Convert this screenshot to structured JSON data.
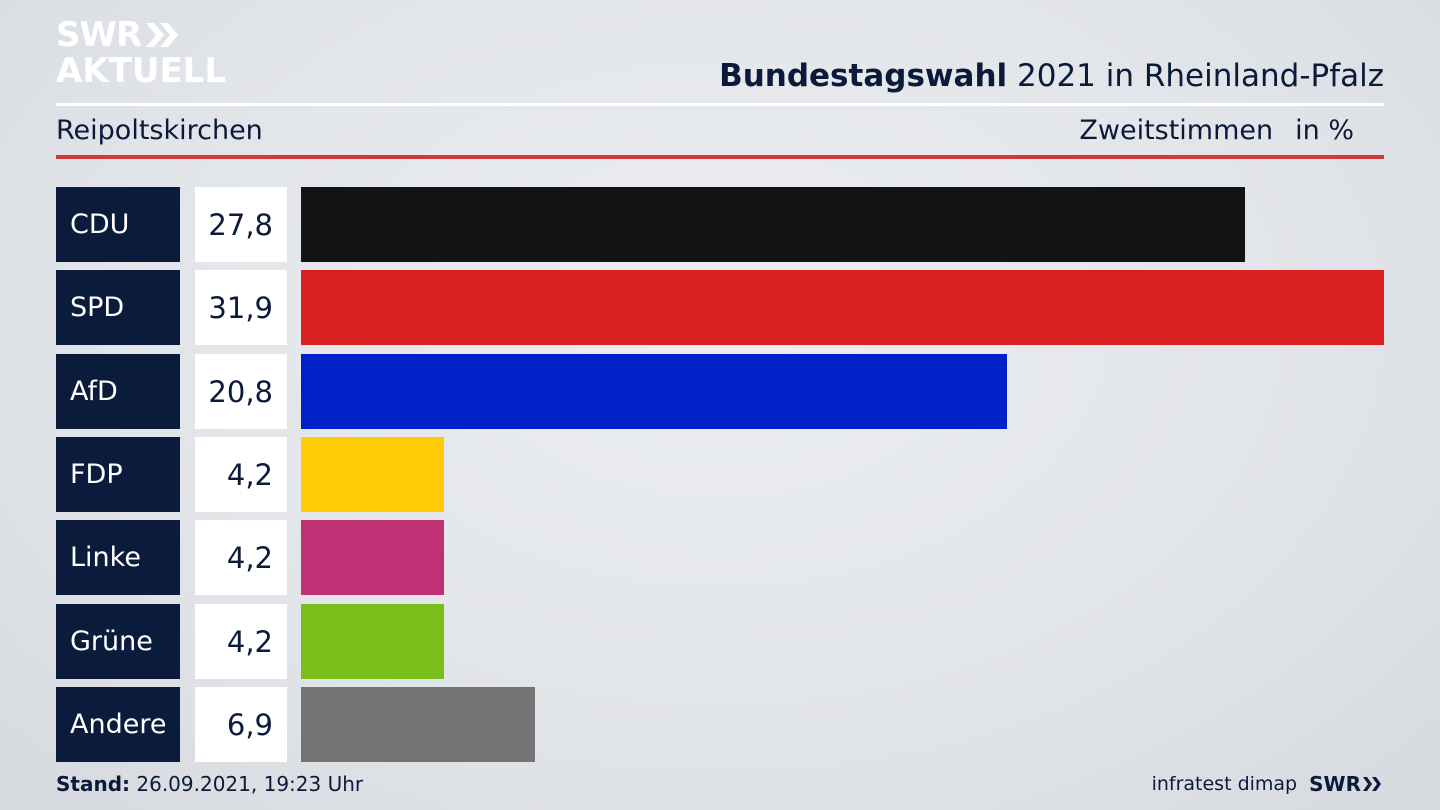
{
  "brand": {
    "line1": "SWR",
    "line2": "AKTUELL",
    "arrows_icon": "double-chevron-right-icon"
  },
  "header": {
    "title_bold": "Bundestagswahl",
    "title_rest": " 2021 in Rheinland-Pfalz",
    "subtitle": "Reipoltskirchen",
    "measure": "Zweitstimmen",
    "unit": "in %"
  },
  "chart_data": {
    "type": "bar",
    "orientation": "horizontal",
    "categories": [
      "CDU",
      "SPD",
      "AfD",
      "FDP",
      "Linke",
      "Grüne",
      "Andere"
    ],
    "values": [
      27.8,
      31.9,
      20.8,
      4.2,
      4.2,
      4.2,
      6.9
    ],
    "value_labels": [
      "27,8",
      "31,9",
      "20,8",
      "4,2",
      "4,2",
      "4,2",
      "6,9"
    ],
    "colors": [
      "#131313",
      "#d91f20",
      "#0020c8",
      "#ffcc08",
      "#bf3174",
      "#79bf1c",
      "#747474"
    ],
    "xlim": [
      0,
      31.9
    ],
    "grid": false,
    "legend": "none"
  },
  "footer": {
    "stand_label": "Stand:",
    "stand_value": " 26.09.2021, 19:23 Uhr",
    "source": "infratest dimap",
    "logo": "SWR"
  }
}
